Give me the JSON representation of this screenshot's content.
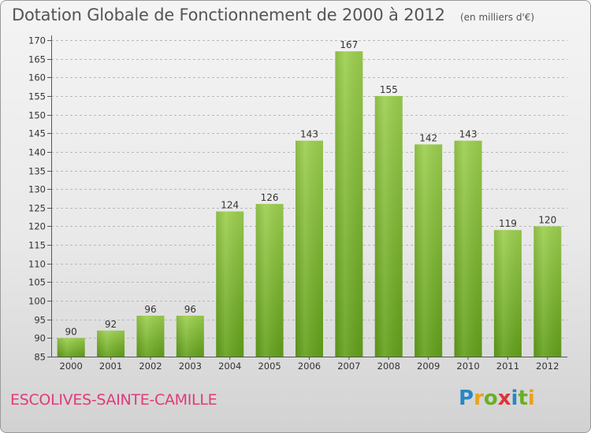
{
  "header": {
    "title": "Dotation Globale de Fonctionnement de 2000 à 2012",
    "subtitle": "(en milliers d'€)"
  },
  "footer": {
    "commune": "ESCOLIVES-SAINTE-CAMILLE",
    "brand": "Proxiti",
    "brand_colors": [
      "#2a86c4",
      "#e9a21b",
      "#6ab023",
      "#e0323a",
      "#2a86c4",
      "#6ab023",
      "#e9a21b"
    ]
  },
  "colors": {
    "bar_top": "#9ccf4e",
    "bar_bottom": "#62a01a",
    "accent_pink": "#e03a7a",
    "grid": "#b8b8b8",
    "text": "#333333"
  },
  "chart_data": {
    "type": "bar",
    "title": "Dotation Globale de Fonctionnement de 2000 à 2012",
    "subtitle": "(en milliers d'€)",
    "xlabel": "",
    "ylabel": "",
    "categories": [
      "2000",
      "2001",
      "2002",
      "2003",
      "2004",
      "2005",
      "2006",
      "2007",
      "2008",
      "2009",
      "2010",
      "2011",
      "2012"
    ],
    "values": [
      90,
      92,
      96,
      96,
      124,
      126,
      143,
      167,
      155,
      142,
      143,
      119,
      120
    ],
    "ylim": [
      85,
      170
    ],
    "yticks": [
      85,
      90,
      95,
      100,
      105,
      110,
      115,
      120,
      125,
      130,
      135,
      140,
      145,
      150,
      155,
      160,
      165,
      170
    ],
    "grid": true,
    "legend": "none"
  }
}
